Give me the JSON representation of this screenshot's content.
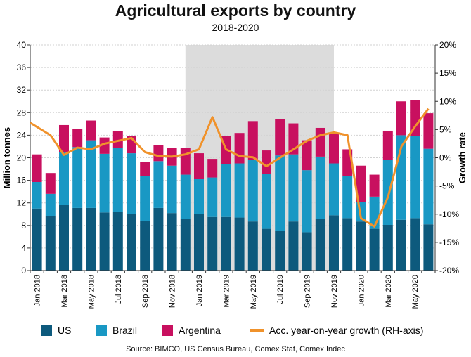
{
  "chart_data": {
    "type": "bar",
    "title": "Agricultural exports by country",
    "subtitle": "2018-2020",
    "ylabel": "Million tonnes",
    "y2label": "Growth rate",
    "ylim": [
      0,
      40
    ],
    "y2lim": [
      -20,
      20
    ],
    "yticks": [
      "0",
      "4",
      "8",
      "12",
      "16",
      "20",
      "24",
      "28",
      "32",
      "36",
      "40"
    ],
    "y2ticks": [
      "-20%",
      "-15%",
      "-10%",
      "-5%",
      "0%",
      "5%",
      "10%",
      "15%",
      "20%"
    ],
    "categories": [
      "Jan 2018",
      "Feb 2018",
      "Mar 2018",
      "Apr 2018",
      "May 2018",
      "Jun 2018",
      "Jul 2018",
      "Aug 2018",
      "Sep 2018",
      "Oct 2018",
      "Nov 2018",
      "Dec 2018",
      "Jan 2019",
      "Feb 2019",
      "Mar 2019",
      "Apr 2019",
      "May 2019",
      "Jun 2019",
      "Jul 2019",
      "Aug 2019",
      "Sep 2019",
      "Oct 2019",
      "Nov 2019",
      "Dec 2019",
      "Jan 2020",
      "Feb 2020",
      "Mar 2020",
      "Apr 2020",
      "May 2020",
      "Jun 2020"
    ],
    "xtick_labels": [
      "Jan 2018",
      "",
      "Mar 2018",
      "",
      "May 2018",
      "",
      "Jul 2018",
      "",
      "Sep 2018",
      "",
      "Nov 2018",
      "",
      "Jan 2019",
      "",
      "Mar 2019",
      "",
      "May 2019",
      "",
      "Jul 2019",
      "",
      "Sep 2019",
      "",
      "Nov 2019",
      "",
      "Jan 2020",
      "",
      "Mar 2020",
      "",
      "May 2020",
      ""
    ],
    "shaded_region": [
      "Dec 2018",
      "Nov 2019"
    ],
    "series": [
      {
        "name": "US",
        "color": "#0d5a7d",
        "values": [
          11.0,
          9.6,
          11.7,
          11.1,
          11.1,
          10.3,
          10.4,
          10.0,
          8.8,
          11.1,
          10.2,
          9.2,
          10.0,
          9.5,
          9.5,
          9.4,
          8.7,
          7.4,
          7.0,
          8.7,
          6.8,
          9.1,
          9.8,
          9.3,
          8.7,
          7.4,
          8.1,
          9.0,
          9.3,
          8.2
        ]
      },
      {
        "name": "Brazil",
        "color": "#1998c4",
        "values": [
          4.7,
          4.0,
          9.3,
          10.8,
          12.0,
          10.4,
          11.4,
          10.8,
          7.9,
          8.3,
          8.4,
          7.8,
          6.2,
          7.0,
          9.4,
          9.6,
          10.9,
          9.7,
          13.4,
          11.9,
          11.0,
          11.1,
          9.2,
          7.5,
          3.5,
          5.7,
          11.5,
          15.0,
          14.5,
          13.4
        ]
      },
      {
        "name": "Argentina",
        "color": "#c8105f",
        "values": [
          4.9,
          3.7,
          4.8,
          3.2,
          3.5,
          2.9,
          2.9,
          3.0,
          2.6,
          2.9,
          3.2,
          4.8,
          4.6,
          3.3,
          5.0,
          5.4,
          6.9,
          4.2,
          6.5,
          5.5,
          5.3,
          5.1,
          5.3,
          4.7,
          6.4,
          3.9,
          5.2,
          6.0,
          6.4,
          6.3
        ]
      }
    ],
    "line_series": {
      "name": "Acc. year-on-year growth (RH-axis)",
      "color": "#f0922b",
      "axis": "right",
      "values": [
        6.2,
        4.0,
        0.5,
        1.8,
        1.5,
        2.5,
        3.0,
        3.5,
        1.0,
        0.3,
        0.2,
        0.6,
        1.5,
        7.2,
        1.5,
        0.3,
        0.1,
        -1.5,
        0.0,
        1.5,
        3.0,
        4.0,
        4.5,
        4.0,
        -10.7,
        -12.2,
        -7.0,
        2.0,
        5.5,
        8.7
      ]
    },
    "legend": [
      "US",
      "Brazil",
      "Argentina",
      "Acc. year-on-year growth (RH-axis)"
    ],
    "legend_position": "bottom"
  },
  "source": "Source: BIMCO, US Census Bureau, Comex Stat, Comex Indec"
}
